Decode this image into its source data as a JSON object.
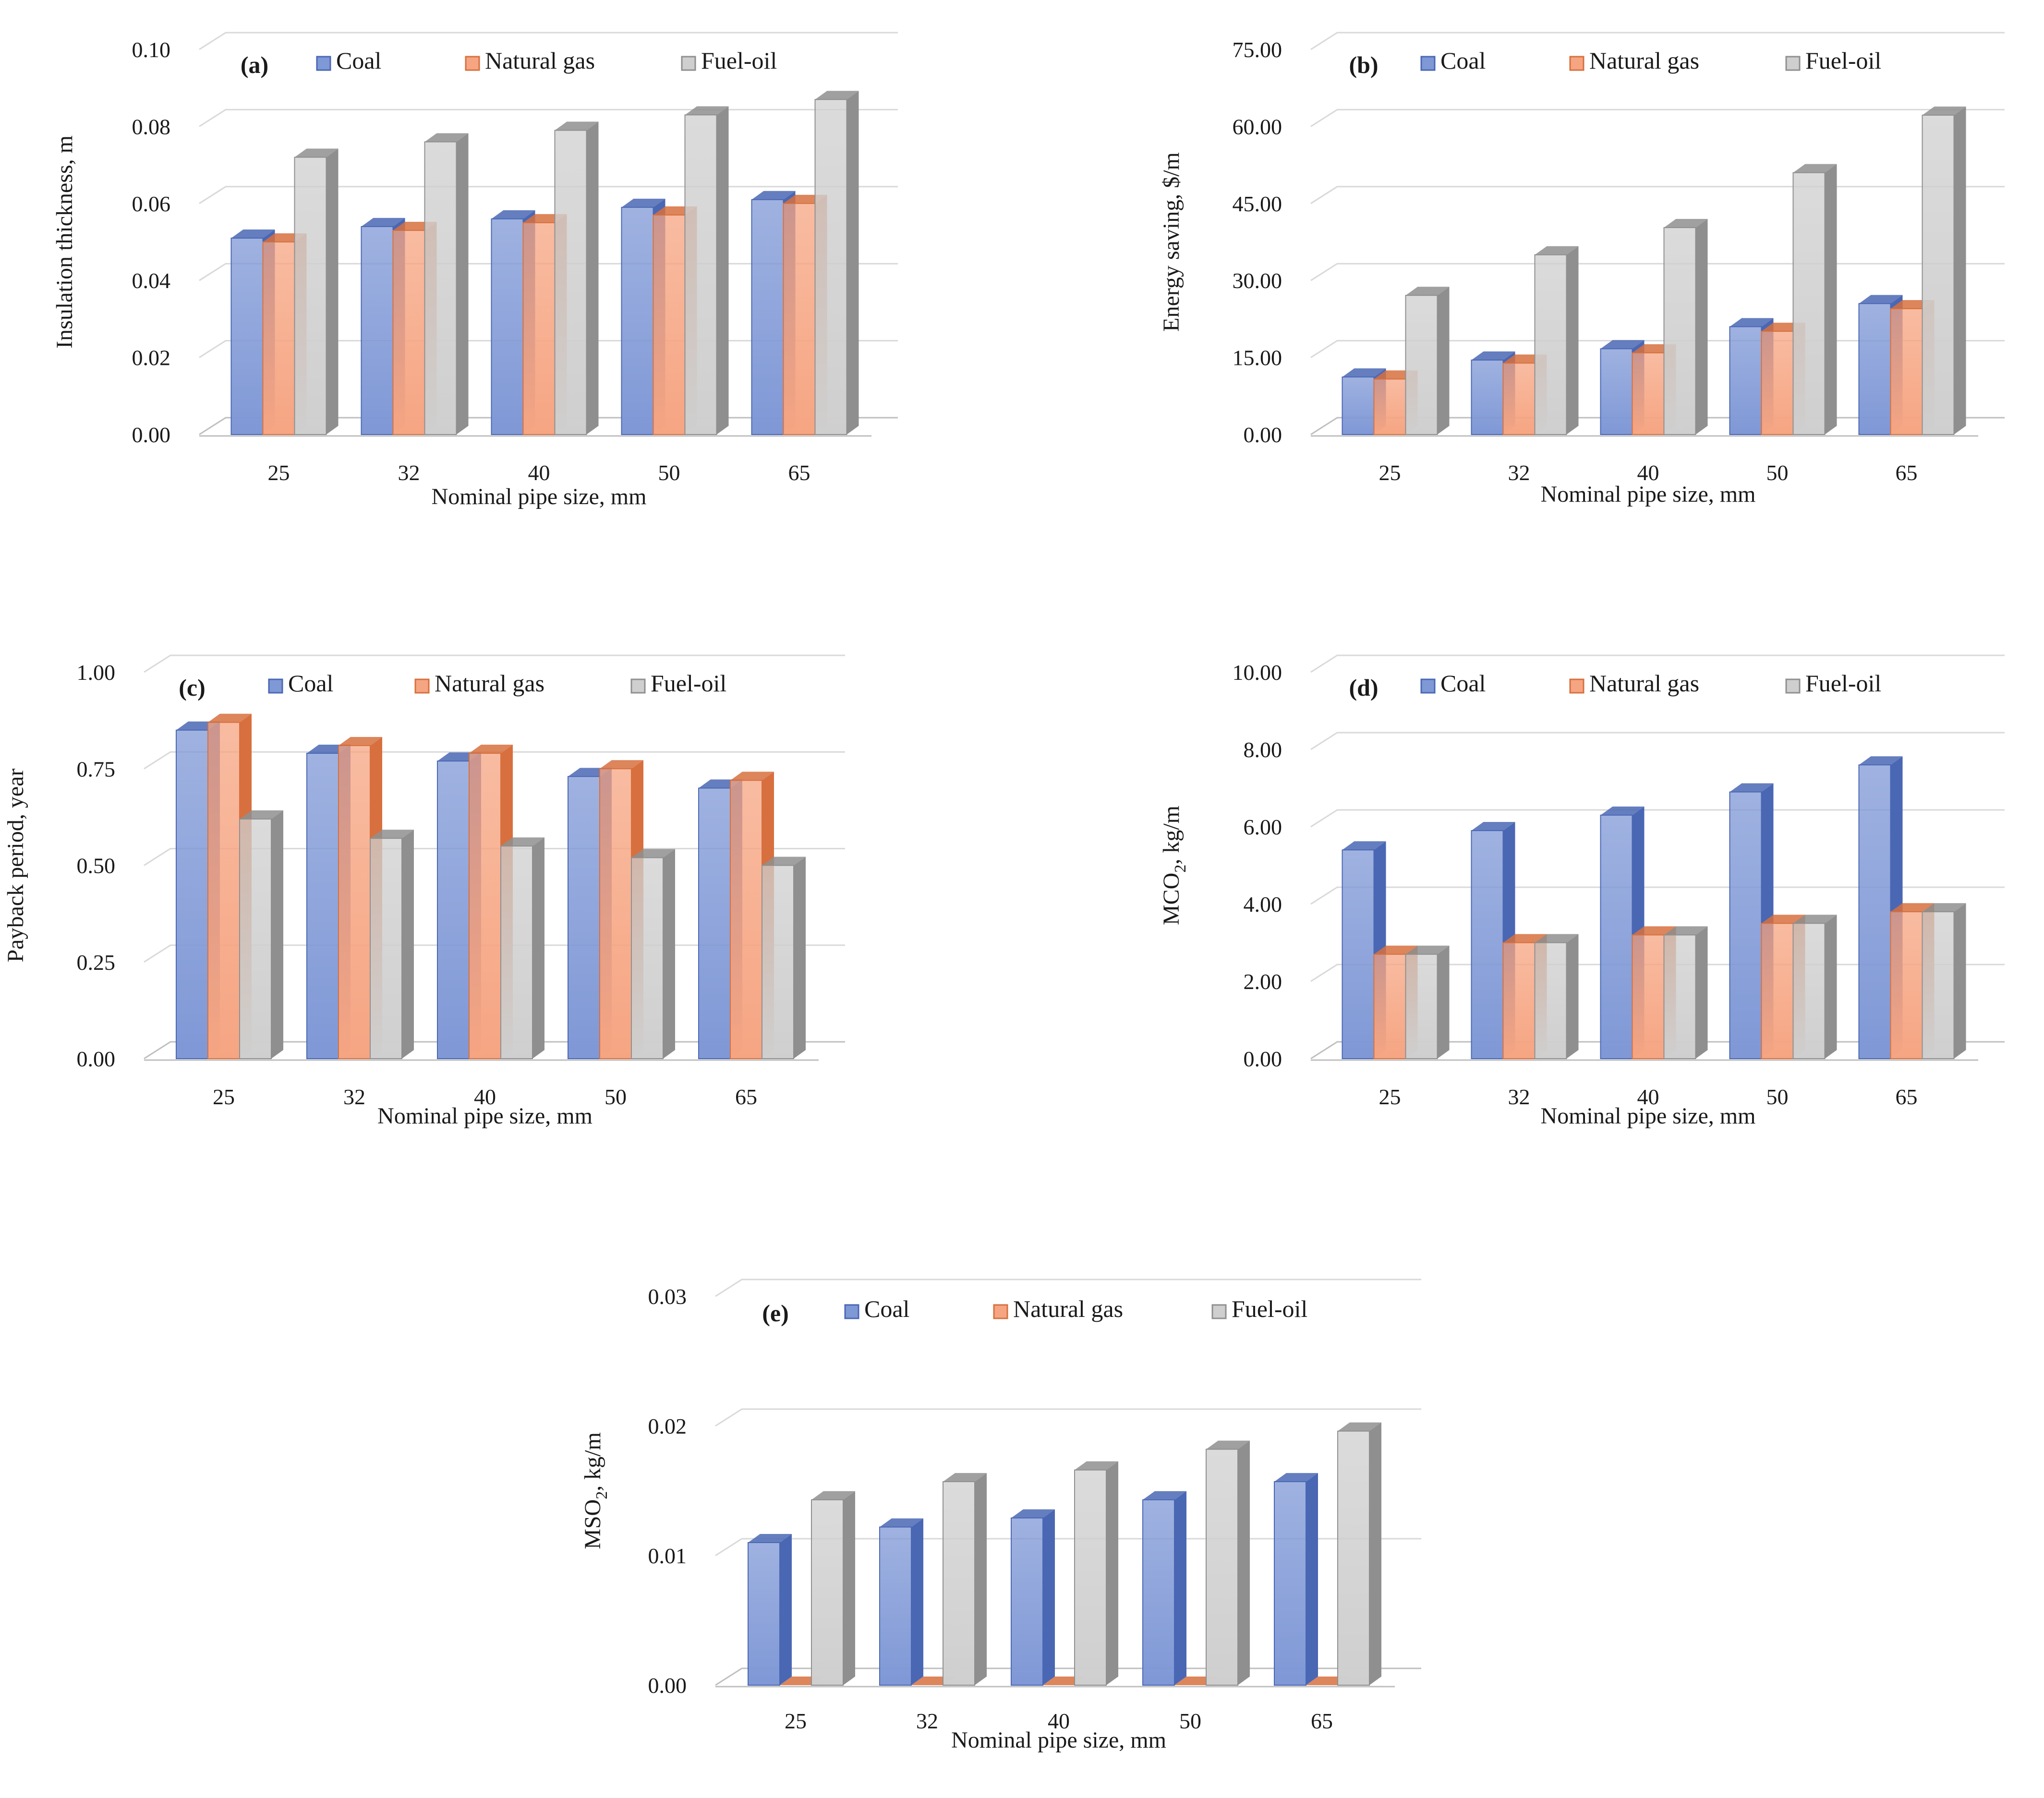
{
  "colors": {
    "coal": "#7f98d6",
    "coal_dark": "#4a67b4",
    "natural_gas": "#f6a582",
    "natural_gas_dark": "#d7703e",
    "fuel_oil": "#cfcfcf",
    "fuel_oil_dark": "#8f8f8f"
  },
  "chart_data": [
    {
      "panel": "(a)",
      "type": "bar",
      "categories": [
        "25",
        "32",
        "40",
        "50",
        "65"
      ],
      "series": [
        {
          "name": "Coal",
          "values": [
            0.051,
            0.054,
            0.056,
            0.059,
            0.061
          ]
        },
        {
          "name": "Natural gas",
          "values": [
            0.05,
            0.053,
            0.055,
            0.057,
            0.06
          ]
        },
        {
          "name": "Fuel-oil",
          "values": [
            0.072,
            0.076,
            0.079,
            0.083,
            0.087
          ]
        }
      ],
      "xlabel": "Nominal pipe size, mm",
      "ylabel": "Insulation thickness, m",
      "ylim": [
        0,
        0.1
      ],
      "yticks": [
        "0.00",
        "0.02",
        "0.04",
        "0.06",
        "0.08",
        "0.10"
      ]
    },
    {
      "panel": "(b)",
      "type": "bar",
      "categories": [
        "25",
        "32",
        "40",
        "50",
        "65"
      ],
      "series": [
        {
          "name": "Coal",
          "values": [
            11.2,
            14.5,
            16.7,
            21.0,
            25.5
          ]
        },
        {
          "name": "Natural gas",
          "values": [
            10.8,
            13.9,
            15.9,
            20.1,
            24.5
          ]
        },
        {
          "name": "Fuel-oil",
          "values": [
            27.1,
            35.0,
            40.3,
            51.0,
            62.2
          ]
        }
      ],
      "xlabel": "Nominal pipe size, mm",
      "ylabel": "Energy saving, $/m",
      "ylim": [
        0,
        75
      ],
      "yticks": [
        "0.00",
        "15.00",
        "30.00",
        "45.00",
        "60.00",
        "75.00"
      ]
    },
    {
      "panel": "(c)",
      "type": "bar",
      "categories": [
        "25",
        "32",
        "40",
        "50",
        "65"
      ],
      "series": [
        {
          "name": "Coal",
          "values": [
            0.85,
            0.79,
            0.77,
            0.73,
            0.7
          ]
        },
        {
          "name": "Natural gas",
          "values": [
            0.87,
            0.81,
            0.79,
            0.75,
            0.72
          ]
        },
        {
          "name": "Fuel-oil",
          "values": [
            0.62,
            0.57,
            0.55,
            0.52,
            0.5
          ]
        }
      ],
      "xlabel": "Nominal pipe size, mm",
      "ylabel": "Payback period, year",
      "ylim": [
        0,
        1.0
      ],
      "yticks": [
        "0.00",
        "0.25",
        "0.50",
        "0.75",
        "1.00"
      ]
    },
    {
      "panel": "(d)",
      "type": "bar",
      "categories": [
        "25",
        "32",
        "40",
        "50",
        "65"
      ],
      "series": [
        {
          "name": "Coal",
          "values": [
            5.4,
            5.9,
            6.3,
            6.9,
            7.6
          ]
        },
        {
          "name": "Natural gas",
          "values": [
            2.7,
            3.0,
            3.2,
            3.5,
            3.8
          ]
        },
        {
          "name": "Fuel-oil",
          "values": [
            2.7,
            3.0,
            3.2,
            3.5,
            3.8
          ]
        }
      ],
      "xlabel": "Nominal pipe size, mm",
      "ylabel": "MCO",
      "ylabel_sub": "2",
      "ylabel_unit": ", kg/m",
      "ylim": [
        0,
        10
      ],
      "yticks": [
        "0.00",
        "2.00",
        "4.00",
        "6.00",
        "8.00",
        "10.00"
      ]
    },
    {
      "panel": "(e)",
      "type": "bar",
      "categories": [
        "25",
        "32",
        "40",
        "50",
        "65"
      ],
      "series": [
        {
          "name": "Coal",
          "values": [
            0.011,
            0.0122,
            0.0129,
            0.0143,
            0.0157
          ]
        },
        {
          "name": "Natural gas",
          "values": [
            0.0,
            0.0,
            0.0,
            0.0,
            0.0
          ]
        },
        {
          "name": "Fuel-oil",
          "values": [
            0.0143,
            0.0157,
            0.0166,
            0.0182,
            0.0196
          ]
        }
      ],
      "xlabel": "Nominal pipe size, mm",
      "ylabel": "MSO",
      "ylabel_sub": "2",
      "ylabel_unit": ", kg/m",
      "ylim": [
        0,
        0.03
      ],
      "yticks": [
        "0.00",
        "0.01",
        "0.02",
        "0.03"
      ]
    }
  ]
}
